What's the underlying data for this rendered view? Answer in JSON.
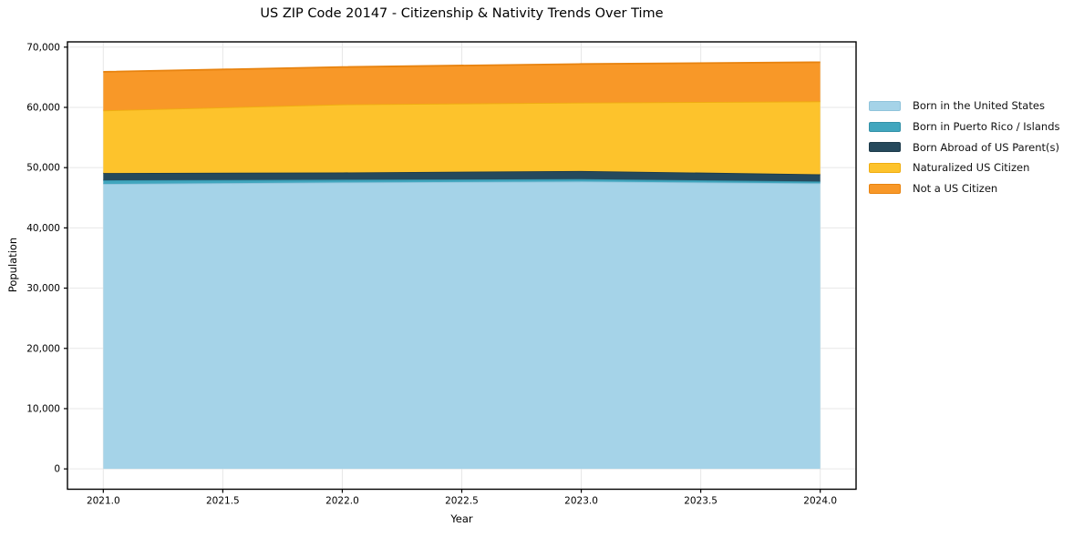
{
  "chart": {
    "title": "US ZIP Code 20147 - Citizenship & Nativity Trends Over Time",
    "xlabel": "Year",
    "ylabel": "Population"
  },
  "chart_data": {
    "type": "area",
    "stacked": true,
    "title": "US ZIP Code 20147 - Citizenship & Nativity Trends Over Time",
    "xlabel": "Year",
    "ylabel": "Population",
    "x": [
      2021.0,
      2022.0,
      2023.0,
      2024.0
    ],
    "series": [
      {
        "name": "Born in the United States",
        "values": [
          47300,
          47550,
          47700,
          47400
        ],
        "color": "#A5D3E8",
        "edge_color": "#8FC3DB"
      },
      {
        "name": "Born in Puerto Rico / Islands",
        "values": [
          600,
          450,
          400,
          300
        ],
        "color": "#41A6BE",
        "edge_color": "#3391A8"
      },
      {
        "name": "Born Abroad of US Parent(s)",
        "values": [
          1200,
          1200,
          1350,
          1200
        ],
        "color": "#25495C",
        "edge_color": "#1C3A4A"
      },
      {
        "name": "Naturalized US Citizen",
        "values": [
          10400,
          11300,
          11350,
          12100
        ],
        "color": "#FDC32C",
        "edge_color": "#EFAD10"
      },
      {
        "name": "Not a US Citizen",
        "values": [
          6400,
          6200,
          6400,
          6500
        ],
        "color": "#F89828",
        "edge_color": "#E8830F"
      }
    ],
    "totals": [
      65900,
      66700,
      67200,
      67500
    ],
    "xlim": [
      2020.85,
      2024.15
    ],
    "ylim": [
      -3375,
      70875
    ],
    "xticks": [
      2021.0,
      2021.5,
      2022.0,
      2022.5,
      2023.0,
      2023.5,
      2024.0
    ],
    "xtick_labels": [
      "2021.0",
      "2021.5",
      "2022.0",
      "2022.5",
      "2023.0",
      "2023.5",
      "2024.0"
    ],
    "yticks": [
      0,
      10000,
      20000,
      30000,
      40000,
      50000,
      60000,
      70000
    ],
    "ytick_labels": [
      "0",
      "10,000",
      "20,000",
      "30,000",
      "40,000",
      "50,000",
      "60,000",
      "70,000"
    ],
    "grid": true,
    "legend_position": "right",
    "style": {
      "grid_color": "#E7E7E7",
      "spine_color": "#000000",
      "tick_label_color": "#000000",
      "background": "#FFFFFF"
    }
  }
}
